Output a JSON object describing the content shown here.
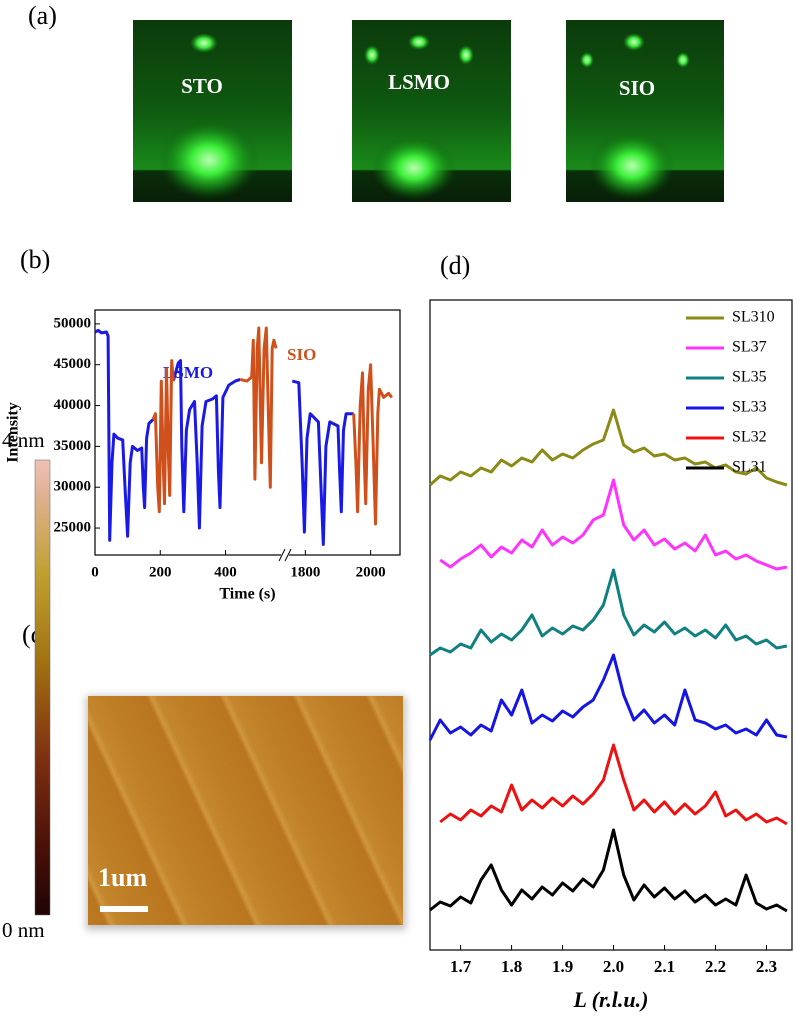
{
  "panels": {
    "a": "(a)",
    "b": "(b)",
    "c": "(c)",
    "d": "(d)"
  },
  "rheed": {
    "labels": [
      "STO",
      "LSMO",
      "SIO"
    ]
  },
  "afm": {
    "scale_max": "4 nm",
    "scale_min": "0 nm",
    "scale_bar": "1um"
  },
  "chart_data": [
    {
      "type": "line",
      "xlabel": "Time (s)",
      "ylabel": "Intensity",
      "xlim": [
        0,
        2090
      ],
      "xbreak": [
        570,
        1750
      ],
      "ylim": [
        21700,
        51700
      ],
      "xticks": [
        0,
        200,
        400,
        1800,
        2000
      ],
      "yticks": [
        25000,
        30000,
        35000,
        40000,
        45000,
        50000
      ],
      "series": [
        {
          "name": "LSMO",
          "color": "#1a1ae6",
          "x": [
            0,
            10,
            20,
            35,
            40,
            45,
            52,
            58,
            70,
            85,
            92,
            100,
            108,
            115,
            130,
            143,
            148,
            152,
            158,
            165,
            178,
            null,
            240,
            255,
            262,
            266,
            272,
            280,
            290,
            305,
            313,
            320,
            328,
            340,
            360,
            372,
            378,
            383,
            392,
            410,
            430,
            445,
            null,
            1760,
            1780,
            1790,
            1797,
            1805,
            1815,
            1840,
            1848,
            1855,
            1863,
            1875,
            1900,
            1905,
            1910,
            1917,
            1925,
            1948
          ],
          "values": [
            49000,
            49200,
            48900,
            49000,
            48500,
            23500,
            33000,
            36500,
            36000,
            35800,
            30000,
            24000,
            33000,
            35000,
            34500,
            34800,
            30000,
            27500,
            36000,
            37800,
            38300,
            null,
            43000,
            45200,
            45500,
            35000,
            27000,
            37000,
            39500,
            40500,
            33000,
            25000,
            37500,
            40500,
            40800,
            41200,
            32000,
            27500,
            41000,
            42500,
            43000,
            43200,
            null,
            43000,
            42800,
            33000,
            24500,
            36000,
            39000,
            38000,
            30000,
            23000,
            35000,
            38000,
            37500,
            32000,
            27000,
            37000,
            39000,
            39000
          ]
        },
        {
          "name": "SIO",
          "color": "#d0501c",
          "x": [
            178,
            185,
            192,
            197,
            203,
            209,
            213,
            219,
            225,
            229,
            235,
            240,
            null,
            445,
            465,
            480,
            485,
            490,
            497,
            502,
            510,
            518,
            525,
            532,
            537,
            543,
            548,
            555,
            null,
            1948,
            1955,
            1960,
            1968,
            1975,
            1981,
            1985,
            1993,
            2000,
            2008,
            2015,
            2022,
            2027,
            2040,
            2055,
            2065
          ],
          "values": [
            38300,
            39000,
            30000,
            27000,
            43000,
            33000,
            28000,
            44500,
            34000,
            29000,
            45500,
            43000,
            null,
            43200,
            43000,
            43500,
            48000,
            31000,
            47000,
            49500,
            33000,
            47000,
            49500,
            38000,
            30000,
            47000,
            48000,
            47000,
            null,
            39000,
            33000,
            27000,
            40000,
            44000,
            33000,
            28000,
            42000,
            45000,
            35000,
            25500,
            39000,
            42000,
            41000,
            41500,
            41000
          ]
        }
      ]
    },
    {
      "type": "line",
      "xlabel": "L (r.l.u.)",
      "xlim": [
        1.64,
        2.35
      ],
      "xticks": [
        1.7,
        1.8,
        1.9,
        {
          "value": 2,
          "label": "2.0"
        },
        2.1,
        2.2,
        2.3
      ],
      "x": [
        1.64,
        1.66,
        1.68,
        1.7,
        1.72,
        1.74,
        1.76,
        1.78,
        1.8,
        1.82,
        1.84,
        1.86,
        1.88,
        1.9,
        1.92,
        1.94,
        1.96,
        1.98,
        2.0,
        2.02,
        2.04,
        2.06,
        2.08,
        2.1,
        2.12,
        2.14,
        2.16,
        2.18,
        2.2,
        2.22,
        2.24,
        2.26,
        2.28,
        2.3,
        2.32,
        2.34
      ],
      "series": [
        {
          "name": "SL310",
          "color": "#8a8a14",
          "values": [
            0.5,
            1.4,
            1.0,
            1.8,
            1.4,
            2.2,
            1.8,
            3.0,
            2.4,
            3.2,
            2.8,
            4.0,
            3.0,
            3.6,
            3.2,
            4.0,
            4.6,
            5.0,
            8.0,
            4.5,
            3.8,
            4.2,
            3.4,
            3.6,
            3.0,
            3.2,
            2.6,
            2.8,
            2.2,
            2.5,
            1.8,
            1.6,
            2.2,
            1.2,
            0.8,
            0.5
          ]
        },
        {
          "name": "SL37",
          "color": "#ff33ff",
          "values": [
            null,
            1.5,
            0.8,
            1.6,
            2.2,
            3.0,
            1.8,
            2.8,
            2.2,
            3.5,
            2.8,
            4.5,
            3.0,
            3.8,
            3.2,
            4.0,
            5.5,
            6.0,
            9.5,
            5.0,
            3.5,
            4.5,
            3.0,
            3.6,
            2.6,
            3.2,
            2.4,
            4.0,
            2.0,
            2.4,
            1.6,
            2.0,
            1.4,
            1.0,
            0.6,
            0.8
          ]
        },
        {
          "name": "SL35",
          "color": "#118080",
          "values": [
            0.5,
            1.2,
            0.8,
            1.6,
            1.2,
            3.0,
            1.8,
            2.6,
            2.0,
            3.0,
            4.5,
            2.4,
            3.2,
            2.6,
            3.4,
            3.0,
            4.0,
            5.5,
            9.0,
            4.5,
            2.5,
            3.5,
            2.8,
            3.8,
            2.6,
            3.2,
            2.4,
            3.0,
            2.2,
            3.5,
            2.0,
            2.4,
            1.6,
            2.0,
            1.2,
            1.4
          ]
        },
        {
          "name": "SL33",
          "color": "#1414e6",
          "values": [
            0.5,
            2.5,
            1.2,
            1.8,
            1.0,
            2.0,
            1.4,
            4.5,
            3.0,
            5.5,
            2.2,
            3.0,
            2.4,
            3.4,
            2.8,
            3.8,
            4.5,
            6.5,
            9.0,
            5.0,
            2.5,
            3.5,
            2.2,
            3.0,
            2.0,
            5.5,
            2.5,
            2.2,
            1.6,
            2.0,
            1.2,
            1.6,
            1.0,
            2.5,
            1.0,
            0.8
          ]
        },
        {
          "name": "SL32",
          "color": "#ee1111",
          "values": [
            null,
            0.8,
            1.6,
            1.0,
            2.0,
            1.4,
            2.4,
            1.8,
            4.5,
            2.0,
            3.0,
            2.2,
            3.2,
            2.4,
            3.4,
            2.6,
            3.6,
            5.0,
            8.5,
            5.0,
            2.0,
            3.0,
            1.8,
            2.8,
            1.6,
            2.6,
            1.6,
            2.4,
            3.8,
            1.4,
            2.0,
            1.0,
            1.6,
            0.8,
            1.2,
            0.6
          ]
        },
        {
          "name": "SL31",
          "color": "#000000",
          "values": [
            0.5,
            1.3,
            0.9,
            1.8,
            1.2,
            3.5,
            5.0,
            2.5,
            1.0,
            2.5,
            1.6,
            2.8,
            2.0,
            3.2,
            2.4,
            3.6,
            2.8,
            4.5,
            8.5,
            4.0,
            1.5,
            3.0,
            1.8,
            2.7,
            1.6,
            2.4,
            1.3,
            2.0,
            1.0,
            1.6,
            1.0,
            4.0,
            1.2,
            0.6,
            1.0,
            0.4
          ]
        }
      ]
    }
  ]
}
